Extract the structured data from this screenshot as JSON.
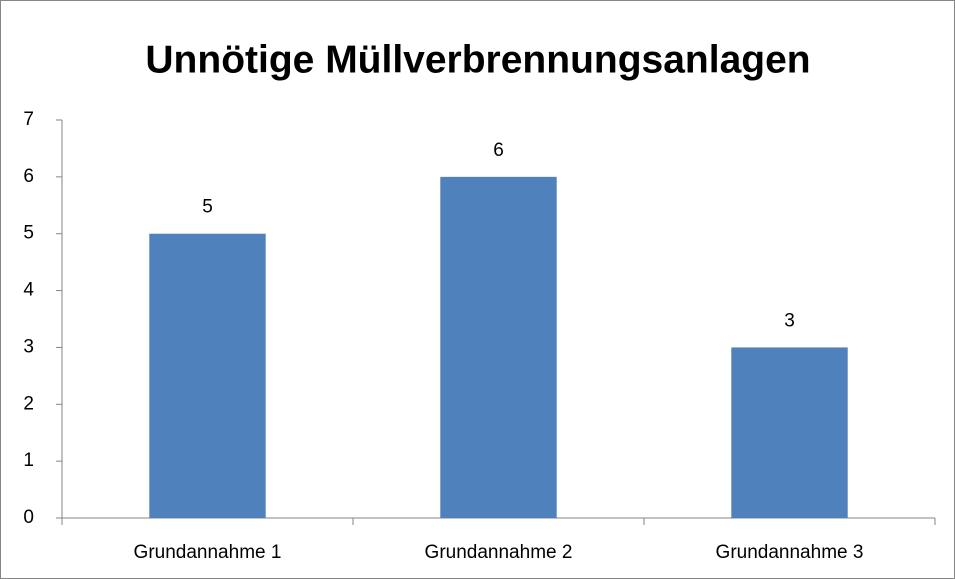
{
  "chart_data": {
    "type": "bar",
    "title": "Unnötige Müllverbrennungsanlagen",
    "categories": [
      "Grundannahme 1",
      "Grundannahme 2",
      "Grundannahme 3"
    ],
    "values": [
      5,
      6,
      3
    ],
    "color": "#4f81bd",
    "ylim": [
      0,
      7
    ],
    "yticks": [
      0,
      1,
      2,
      3,
      4,
      5,
      6,
      7
    ],
    "grid": false,
    "data_labels": true
  }
}
